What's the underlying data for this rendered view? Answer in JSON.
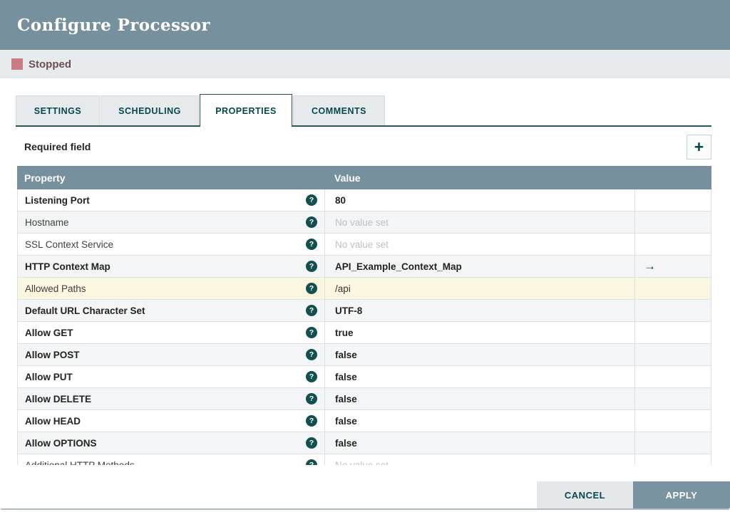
{
  "dialog": {
    "title": "Configure Processor"
  },
  "status": {
    "label": "Stopped",
    "square_color": "#CA7A82",
    "text_color": "#6E4E54"
  },
  "tabs": [
    {
      "label": "SETTINGS",
      "active": false
    },
    {
      "label": "SCHEDULING",
      "active": false
    },
    {
      "label": "PROPERTIES",
      "active": true
    },
    {
      "label": "COMMENTS",
      "active": false
    }
  ],
  "toolbar": {
    "required_field_label": "Required field",
    "add_glyph": "+"
  },
  "icons": {
    "help_glyph": "?",
    "goto_arrow_glyph": "→"
  },
  "table": {
    "columns": [
      "Property",
      "Value"
    ],
    "rows": [
      {
        "property": "Listening Port",
        "required": true,
        "value": "80",
        "value_set": true,
        "goto_arrow": false,
        "highlighted": false
      },
      {
        "property": "Hostname",
        "required": false,
        "value": "No value set",
        "value_set": false,
        "goto_arrow": false,
        "highlighted": false
      },
      {
        "property": "SSL Context Service",
        "required": false,
        "value": "No value set",
        "value_set": false,
        "goto_arrow": false,
        "highlighted": false
      },
      {
        "property": "HTTP Context Map",
        "required": true,
        "value": "API_Example_Context_Map",
        "value_set": true,
        "goto_arrow": true,
        "highlighted": false
      },
      {
        "property": "Allowed Paths",
        "required": false,
        "value": "/api",
        "value_set": true,
        "goto_arrow": false,
        "highlighted": true
      },
      {
        "property": "Default URL Character Set",
        "required": true,
        "value": "UTF-8",
        "value_set": true,
        "goto_arrow": false,
        "highlighted": false
      },
      {
        "property": "Allow GET",
        "required": true,
        "value": "true",
        "value_set": true,
        "goto_arrow": false,
        "highlighted": false
      },
      {
        "property": "Allow POST",
        "required": true,
        "value": "false",
        "value_set": true,
        "goto_arrow": false,
        "highlighted": false
      },
      {
        "property": "Allow PUT",
        "required": true,
        "value": "false",
        "value_set": true,
        "goto_arrow": false,
        "highlighted": false
      },
      {
        "property": "Allow DELETE",
        "required": true,
        "value": "false",
        "value_set": true,
        "goto_arrow": false,
        "highlighted": false
      },
      {
        "property": "Allow HEAD",
        "required": true,
        "value": "false",
        "value_set": true,
        "goto_arrow": false,
        "highlighted": false
      },
      {
        "property": "Allow OPTIONS",
        "required": true,
        "value": "false",
        "value_set": true,
        "goto_arrow": false,
        "highlighted": false
      },
      {
        "property": "Additional HTTP Methods",
        "required": false,
        "value": "No value set",
        "value_set": false,
        "goto_arrow": false,
        "highlighted": false
      }
    ]
  },
  "footer": {
    "cancel_label": "CANCEL",
    "apply_label": "APPLY"
  },
  "colors": {
    "header_bg": "#77909D",
    "accent_teal": "#07484A",
    "status_bar_bg": "#E7EBED",
    "highlight_row": "#FBF6DF",
    "alt_row": "#F3F5F6",
    "unset_text": "#BEC0C2"
  }
}
